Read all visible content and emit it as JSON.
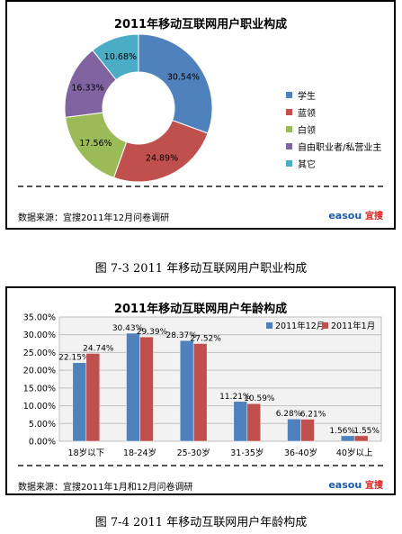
{
  "chart_data": [
    {
      "type": "pie",
      "style": "donut",
      "title": "2011年移动互联网用户职业构成",
      "categories": [
        "学生",
        "蓝领",
        "白领",
        "自由职业者/私营业主",
        "其它"
      ],
      "values": [
        30.54,
        24.89,
        17.56,
        16.33,
        10.68
      ],
      "value_labels": [
        "30.54%",
        "24.89%",
        "17.56%",
        "16.33%",
        "10.68%"
      ],
      "colors": [
        "#4f81bd",
        "#c0504d",
        "#9bbb59",
        "#8064a2",
        "#4bacc6"
      ],
      "legend_position": "right",
      "source": "数据来源：宜搜2011年12月问卷调研"
    },
    {
      "type": "bar",
      "title": "2011年移动互联网用户年龄构成",
      "categories": [
        "18岁以下",
        "18-24岁",
        "25-30岁",
        "31-35岁",
        "36-40岁",
        "40岁以上"
      ],
      "series": [
        {
          "name": "2011年12月",
          "color": "#4f81bd",
          "values": [
            22.15,
            30.43,
            28.37,
            11.21,
            6.28,
            1.56
          ],
          "labels": [
            "22.15%",
            "30.43%",
            "28.37%",
            "11.21%",
            "6.28%",
            "1.56%"
          ]
        },
        {
          "name": "2011年1月",
          "color": "#c0504d",
          "values": [
            24.74,
            29.39,
            27.52,
            10.59,
            6.21,
            1.55
          ],
          "labels": [
            "24.74%",
            "29.39%",
            "27.52%",
            "10.59%",
            "6.21%",
            "1.55%"
          ]
        }
      ],
      "ylim": [
        0,
        35
      ],
      "yticks": [
        "0.00%",
        "5.00%",
        "10.00%",
        "15.00%",
        "20.00%",
        "25.00%",
        "30.00%",
        "35.00%"
      ],
      "grid": true,
      "legend_position": "top-right",
      "source": "数据来源：宜搜2011年1月和12月问卷调研"
    }
  ],
  "logo": {
    "mark": "easou",
    "brand": "宜搜"
  },
  "captions": {
    "fig1": "图 7-3 2011 年移动互联网用户职业构成",
    "fig2": "图 7-4 2011 年移动互联网用户年龄构成"
  }
}
